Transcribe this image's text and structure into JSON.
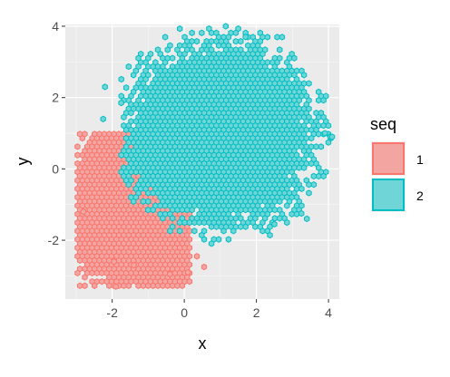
{
  "chart_data": {
    "type": "scatter",
    "geom": "hexbin",
    "title": "",
    "xlabel": "x",
    "ylabel": "y",
    "xlim": [
      -3.3,
      4.3
    ],
    "ylim": [
      -3.65,
      4.05
    ],
    "x_ticks": [
      -2,
      0,
      2,
      4
    ],
    "y_ticks": [
      -2,
      0,
      2,
      4
    ],
    "x_tick_labels": [
      "-2",
      "0",
      "2",
      "4"
    ],
    "y_tick_labels": [
      "-2",
      "0",
      "2",
      "4"
    ],
    "grid": true,
    "background": "#ebebeb",
    "legend": {
      "title": "seq",
      "position": "right",
      "entries": [
        {
          "label": "1",
          "fill": "#f2a5a1",
          "stroke": "#f8766d"
        },
        {
          "label": "2",
          "fill": "#6fd5d6",
          "stroke": "#00bfc4"
        }
      ]
    },
    "series": [
      {
        "name": "1",
        "color": "#f8766d",
        "distribution": "bivariate normal",
        "center": [
          -1.0,
          -1.0
        ],
        "sd": [
          1.0,
          1.0
        ],
        "x_extent": [
          -3.0,
          0.2
        ],
        "y_extent": [
          -3.3,
          1.0
        ],
        "outliers": [
          [
            -1.9,
            -3.3
          ],
          [
            -0.4,
            -2.95
          ],
          [
            -1.4,
            -2.7
          ],
          [
            0.1,
            -2.9
          ],
          [
            -1.95,
            -2.6
          ],
          [
            0.35,
            -2.45
          ],
          [
            0.55,
            -2.75
          ],
          [
            -2.9,
            -0.2
          ],
          [
            -2.8,
            -1.2
          ]
        ]
      },
      {
        "name": "2",
        "color": "#00bfc4",
        "distribution": "bivariate normal",
        "center": [
          1.0,
          1.0
        ],
        "sd": [
          1.0,
          1.0
        ],
        "x_extent": [
          -1.8,
          4.1
        ],
        "y_extent": [
          -2.4,
          4.0
        ],
        "outliers": [
          [
            -2.2,
            2.3
          ],
          [
            -1.75,
            1.85
          ],
          [
            -2.25,
            1.4
          ],
          [
            1.15,
            4.0
          ],
          [
            1.7,
            3.7
          ],
          [
            4.05,
            0.9
          ],
          [
            4.1,
            0.9
          ],
          [
            3.4,
            -1.4
          ],
          [
            2.5,
            -1.55
          ],
          [
            3.25,
            -1.25
          ],
          [
            3.9,
            1.0
          ]
        ]
      }
    ]
  }
}
